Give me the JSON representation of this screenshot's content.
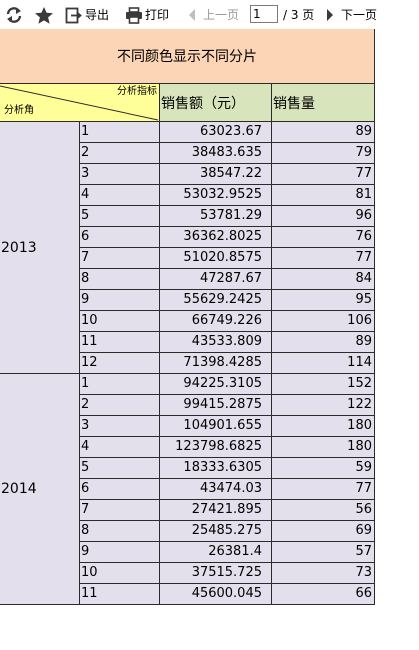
{
  "toolbar": {
    "export_label": "导出",
    "print_label": "打印",
    "prev_label": "上一页",
    "current_page": "1",
    "total_pages": "/ 3 页",
    "next_label": "下一页"
  },
  "report": {
    "title": "不同颜色显示不同分片",
    "corner_top": "分析指标",
    "corner_bottom": "分析角",
    "col_amount": "销售额（元）",
    "col_qty": "销售量",
    "groups": [
      {
        "year": "2013",
        "rows": [
          {
            "month": "1",
            "amount": "63023.67",
            "qty": "89"
          },
          {
            "month": "2",
            "amount": "38483.635",
            "qty": "79"
          },
          {
            "month": "3",
            "amount": "38547.22",
            "qty": "77"
          },
          {
            "month": "4",
            "amount": "53032.9525",
            "qty": "81"
          },
          {
            "month": "5",
            "amount": "53781.29",
            "qty": "96"
          },
          {
            "month": "6",
            "amount": "36362.8025",
            "qty": "76"
          },
          {
            "month": "7",
            "amount": "51020.8575",
            "qty": "77"
          },
          {
            "month": "8",
            "amount": "47287.67",
            "qty": "84"
          },
          {
            "month": "9",
            "amount": "55629.2425",
            "qty": "95"
          },
          {
            "month": "10",
            "amount": "66749.226",
            "qty": "106"
          },
          {
            "month": "11",
            "amount": "43533.809",
            "qty": "89"
          },
          {
            "month": "12",
            "amount": "71398.4285",
            "qty": "114"
          }
        ]
      },
      {
        "year": "2014",
        "rows": [
          {
            "month": "1",
            "amount": "94225.3105",
            "qty": "152"
          },
          {
            "month": "2",
            "amount": "99415.2875",
            "qty": "122"
          },
          {
            "month": "3",
            "amount": "104901.655",
            "qty": "180"
          },
          {
            "month": "4",
            "amount": "123798.6825",
            "qty": "180"
          },
          {
            "month": "5",
            "amount": "18333.6305",
            "qty": "59"
          },
          {
            "month": "6",
            "amount": "43474.03",
            "qty": "77"
          },
          {
            "month": "7",
            "amount": "27421.895",
            "qty": "56"
          },
          {
            "month": "8",
            "amount": "25485.275",
            "qty": "69"
          },
          {
            "month": "9",
            "amount": "26381.4",
            "qty": "57"
          },
          {
            "month": "10",
            "amount": "37515.725",
            "qty": "73"
          },
          {
            "month": "11",
            "amount": "45600.045",
            "qty": "66"
          }
        ]
      }
    ]
  },
  "colors": {
    "title_bg": "#fbd5b5",
    "corner_bg": "#ffff99",
    "header_bg": "#d8e4bc",
    "body_bg": "#e4dfec"
  },
  "icons": [
    "refresh-icon",
    "star-icon",
    "export-icon",
    "print-icon",
    "prev-arrow-icon",
    "next-arrow-icon"
  ]
}
